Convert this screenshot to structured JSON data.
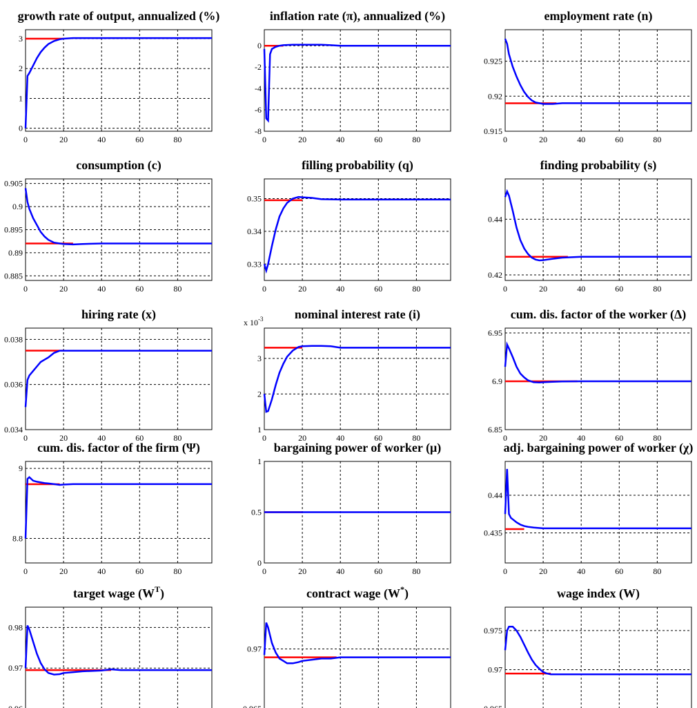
{
  "chart_data": [
    {
      "type": "line",
      "title": "growth rate of output, annualized (%)",
      "xlim": [
        0,
        98
      ],
      "ylim": [
        -0.1,
        3.3
      ],
      "xticks": [
        0,
        20,
        40,
        60,
        80
      ],
      "yticks": [
        0,
        1,
        2,
        3
      ],
      "ytick_labels": [
        "0",
        "1",
        "2",
        "3"
      ],
      "steady_state": {
        "value": 3.0,
        "x_end": 20
      },
      "series": [
        {
          "x": [
            0,
            1,
            2,
            4,
            6,
            8,
            10,
            12,
            15,
            18,
            20,
            25,
            30,
            40,
            60,
            98
          ],
          "values": [
            0,
            1.75,
            1.85,
            2.1,
            2.35,
            2.55,
            2.7,
            2.82,
            2.92,
            2.98,
            3.0,
            3.02,
            3.02,
            3.02,
            3.02,
            3.02
          ]
        }
      ]
    },
    {
      "type": "line",
      "title": "inflation rate (π), annualized (%)",
      "xlim": [
        0,
        98
      ],
      "ylim": [
        -8,
        1.5
      ],
      "xticks": [
        0,
        20,
        40,
        60,
        80
      ],
      "yticks": [
        -8,
        -6,
        -4,
        -2,
        0
      ],
      "ytick_labels": [
        "-8",
        "-6",
        "-4",
        "-2",
        "0"
      ],
      "steady_state": {
        "value": 0,
        "x_end": 10
      },
      "series": [
        {
          "x": [
            0,
            1,
            2,
            3,
            4,
            6,
            8,
            10,
            15,
            20,
            25,
            30,
            35,
            40,
            60,
            98
          ],
          "values": [
            -0.3,
            -6.8,
            -7.0,
            -0.8,
            -0.3,
            -0.1,
            0.0,
            0.05,
            0.1,
            0.1,
            0.1,
            0.1,
            0.05,
            0.0,
            0.0,
            0.0
          ]
        }
      ]
    },
    {
      "type": "line",
      "title": "employment rate (n)",
      "xlim": [
        0,
        98
      ],
      "ylim": [
        0.915,
        0.9295
      ],
      "xticks": [
        0,
        20,
        40,
        60,
        80
      ],
      "yticks": [
        0.915,
        0.92,
        0.925
      ],
      "ytick_labels": [
        "0.915",
        "0.92",
        "0.925"
      ],
      "steady_state": {
        "value": 0.919,
        "x_end": 27
      },
      "series": [
        {
          "x": [
            0,
            1,
            2,
            4,
            6,
            8,
            10,
            12,
            14,
            16,
            18,
            20,
            25,
            30,
            40,
            60,
            98
          ],
          "values": [
            0.9282,
            0.9275,
            0.926,
            0.9242,
            0.9228,
            0.9216,
            0.9206,
            0.9199,
            0.9194,
            0.9191,
            0.919,
            0.9189,
            0.9189,
            0.919,
            0.919,
            0.919,
            0.919
          ]
        }
      ]
    },
    {
      "type": "line",
      "title": "consumption (c)",
      "xlim": [
        0,
        98
      ],
      "ylim": [
        0.884,
        0.906
      ],
      "xticks": [
        0,
        20,
        40,
        60,
        80
      ],
      "yticks": [
        0.885,
        0.89,
        0.895,
        0.9,
        0.905
      ],
      "ytick_labels": [
        "0.885",
        "0.89",
        "0.895",
        "0.9",
        "0.905"
      ],
      "steady_state": {
        "value": 0.892,
        "x_end": 25
      },
      "series": [
        {
          "x": [
            0,
            1,
            2,
            4,
            6,
            8,
            10,
            12,
            15,
            18,
            20,
            25,
            30,
            40,
            60,
            98
          ],
          "values": [
            0.904,
            0.901,
            0.8995,
            0.8975,
            0.896,
            0.8945,
            0.8935,
            0.8928,
            0.8922,
            0.892,
            0.8919,
            0.8918,
            0.8919,
            0.892,
            0.892,
            0.892
          ]
        }
      ]
    },
    {
      "type": "line",
      "title": "filling probability (q)",
      "xlim": [
        0,
        98
      ],
      "ylim": [
        0.325,
        0.356
      ],
      "xticks": [
        0,
        20,
        40,
        60,
        80
      ],
      "yticks": [
        0.33,
        0.34,
        0.35
      ],
      "ytick_labels": [
        "0.33",
        "0.34",
        "0.35"
      ],
      "steady_state": {
        "value": 0.3495,
        "x_end": 20
      },
      "series": [
        {
          "x": [
            0,
            1,
            2,
            4,
            6,
            8,
            10,
            12,
            15,
            18,
            20,
            25,
            30,
            40,
            60,
            98
          ],
          "values": [
            0.33,
            0.328,
            0.33,
            0.3355,
            0.3405,
            0.3445,
            0.347,
            0.3487,
            0.35,
            0.3505,
            0.3504,
            0.3502,
            0.3498,
            0.3497,
            0.3497,
            0.3497
          ]
        }
      ]
    },
    {
      "type": "line",
      "title": "finding probability (s)",
      "xlim": [
        0,
        98
      ],
      "ylim": [
        0.418,
        0.4545
      ],
      "xticks": [
        0,
        20,
        40,
        60,
        80
      ],
      "yticks": [
        0.42,
        0.44
      ],
      "ytick_labels": [
        "0.42",
        "0.44"
      ],
      "steady_state": {
        "value": 0.4265,
        "x_end": 33
      },
      "series": [
        {
          "x": [
            0,
            1,
            2,
            4,
            6,
            8,
            10,
            12,
            14,
            16,
            18,
            20,
            25,
            30,
            40,
            60,
            98
          ],
          "values": [
            0.448,
            0.45,
            0.4485,
            0.443,
            0.437,
            0.4325,
            0.4295,
            0.4275,
            0.4262,
            0.4255,
            0.4252,
            0.4253,
            0.4258,
            0.4262,
            0.4265,
            0.4265,
            0.4265
          ]
        }
      ]
    },
    {
      "type": "line",
      "title": "hiring rate (x)",
      "xlim": [
        0,
        98
      ],
      "ylim": [
        0.034,
        0.0385
      ],
      "xticks": [
        0,
        20,
        40,
        60,
        80
      ],
      "yticks": [
        0.034,
        0.036,
        0.038
      ],
      "ytick_labels": [
        "0.034",
        "0.036",
        "0.038"
      ],
      "steady_state": {
        "value": 0.0375,
        "x_end": 20
      },
      "series": [
        {
          "x": [
            0,
            1,
            2,
            4,
            6,
            8,
            10,
            12,
            15,
            18,
            20,
            30,
            40,
            60,
            98
          ],
          "values": [
            0.035,
            0.0362,
            0.0364,
            0.0366,
            0.0368,
            0.037,
            0.0371,
            0.0372,
            0.0374,
            0.0375,
            0.0375,
            0.0375,
            0.0375,
            0.0375,
            0.0375
          ]
        }
      ]
    },
    {
      "type": "line",
      "title": "nominal interest rate (i)",
      "multiplier": "x 10",
      "multiplier_exp": "-3",
      "xlim": [
        0,
        98
      ],
      "ylim": [
        1,
        3.85
      ],
      "xticks": [
        0,
        20,
        40,
        60,
        80
      ],
      "yticks": [
        1,
        2,
        3
      ],
      "ytick_labels": [
        "1",
        "2",
        "3"
      ],
      "steady_state": {
        "value": 3.3,
        "x_end": 20
      },
      "series": [
        {
          "x": [
            0,
            1,
            2,
            4,
            6,
            8,
            10,
            12,
            15,
            18,
            20,
            25,
            30,
            35,
            40,
            60,
            98
          ],
          "values": [
            2.0,
            1.5,
            1.52,
            1.85,
            2.25,
            2.6,
            2.85,
            3.05,
            3.22,
            3.32,
            3.34,
            3.35,
            3.35,
            3.34,
            3.3,
            3.3,
            3.3
          ]
        }
      ]
    },
    {
      "type": "line",
      "title": "cum. dis. factor of the worker (Δ)",
      "xlim": [
        0,
        98
      ],
      "ylim": [
        6.85,
        6.955
      ],
      "xticks": [
        0,
        20,
        40,
        60,
        80
      ],
      "yticks": [
        6.85,
        6.9,
        6.95
      ],
      "ytick_labels": [
        "6.85",
        "6.9",
        "6.95"
      ],
      "steady_state": {
        "value": 6.9,
        "x_end": 38
      },
      "series": [
        {
          "x": [
            0,
            1,
            2,
            4,
            6,
            8,
            10,
            12,
            15,
            18,
            20,
            25,
            30,
            40,
            60,
            98
          ],
          "values": [
            6.915,
            6.938,
            6.934,
            6.925,
            6.915,
            6.908,
            6.904,
            6.901,
            6.899,
            6.8988,
            6.899,
            6.8995,
            6.8998,
            6.9,
            6.9,
            6.9
          ]
        }
      ]
    },
    {
      "type": "line",
      "title": "cum. dis. factor of the firm (Ψ)",
      "xlim": [
        0,
        98
      ],
      "ylim": [
        8.73,
        9.02
      ],
      "xticks": [
        0,
        20,
        40,
        60,
        80
      ],
      "yticks": [
        8.8,
        9
      ],
      "ytick_labels": [
        "8.8",
        "9"
      ],
      "steady_state": {
        "value": 8.955,
        "x_end": 18
      },
      "series": [
        {
          "x": [
            0,
            1,
            2,
            4,
            6,
            8,
            10,
            12,
            15,
            18,
            20,
            25,
            30,
            40,
            60,
            98
          ],
          "values": [
            8.8,
            8.97,
            8.975,
            8.965,
            8.962,
            8.96,
            8.958,
            8.957,
            8.955,
            8.953,
            8.954,
            8.955,
            8.955,
            8.955,
            8.955,
            8.955
          ]
        }
      ]
    },
    {
      "type": "line",
      "title": "bargaining power of worker (μ)",
      "xlim": [
        0,
        98
      ],
      "ylim": [
        0,
        1
      ],
      "xticks": [
        0,
        20,
        40,
        60,
        80
      ],
      "yticks": [
        0,
        0.5,
        1
      ],
      "ytick_labels": [
        "0",
        "0.5",
        "1"
      ],
      "steady_state": {
        "value": 0.5,
        "x_end": 20
      },
      "series": [
        {
          "x": [
            0,
            98
          ],
          "values": [
            0.5,
            0.5
          ]
        }
      ]
    },
    {
      "type": "line",
      "title": "adj. bargaining power of worker (χ)",
      "xlim": [
        0,
        98
      ],
      "ylim": [
        0.431,
        0.4445
      ],
      "xticks": [
        0,
        20,
        40,
        60,
        80
      ],
      "yticks": [
        0.435,
        0.44
      ],
      "ytick_labels": [
        "0.435",
        "0.44"
      ],
      "steady_state": {
        "value": 0.4355,
        "x_end": 10
      },
      "series": [
        {
          "x": [
            0,
            1,
            2,
            3,
            4,
            6,
            8,
            10,
            12,
            15,
            20,
            30,
            40,
            60,
            98
          ],
          "values": [
            0.4375,
            0.4435,
            0.4375,
            0.437,
            0.4368,
            0.4364,
            0.4361,
            0.4359,
            0.4358,
            0.4357,
            0.4356,
            0.4356,
            0.4356,
            0.4356,
            0.4356
          ]
        }
      ]
    },
    {
      "type": "line",
      "title": "target wage (W",
      "title_sup": "T",
      "title_end": ")",
      "xlim": [
        0,
        98
      ],
      "ylim": [
        0.96,
        0.985
      ],
      "xticks": [
        0,
        20,
        40,
        60,
        80
      ],
      "yticks": [
        0.96,
        0.97,
        0.98
      ],
      "ytick_labels": [
        "0.96",
        "0.97",
        "0.98"
      ],
      "steady_state": {
        "value": 0.9695,
        "x_end": 45
      },
      "series": [
        {
          "x": [
            0,
            1,
            2,
            4,
            6,
            8,
            10,
            12,
            15,
            18,
            20,
            25,
            30,
            40,
            45,
            50,
            60,
            98
          ],
          "values": [
            0.97,
            0.9805,
            0.9795,
            0.9765,
            0.9735,
            0.9712,
            0.9697,
            0.9688,
            0.9684,
            0.9685,
            0.9688,
            0.969,
            0.9692,
            0.9694,
            0.9697,
            0.9695,
            0.9695,
            0.9695
          ]
        }
      ]
    },
    {
      "type": "line",
      "title": "contract wage (W",
      "title_sup": "*",
      "title_end": ")",
      "xlim": [
        0,
        98
      ],
      "ylim": [
        0.965,
        0.9735
      ],
      "xticks": [
        0,
        20,
        40,
        60,
        80
      ],
      "yticks": [
        0.965,
        0.97
      ],
      "ytick_labels": [
        "0.965",
        "0.97"
      ],
      "steady_state": {
        "value": 0.9693,
        "x_end": 38
      },
      "series": [
        {
          "x": [
            0,
            1,
            2,
            4,
            6,
            8,
            10,
            12,
            15,
            18,
            20,
            25,
            30,
            35,
            40,
            60,
            98
          ],
          "values": [
            0.9695,
            0.9722,
            0.9718,
            0.9705,
            0.9697,
            0.9692,
            0.969,
            0.9688,
            0.9688,
            0.9689,
            0.969,
            0.9691,
            0.9692,
            0.9692,
            0.9693,
            0.9693,
            0.9693
          ]
        }
      ]
    },
    {
      "type": "line",
      "title": "wage index (W)",
      "xlim": [
        0,
        98
      ],
      "ylim": [
        0.965,
        0.978
      ],
      "xticks": [
        0,
        20,
        40,
        60,
        80
      ],
      "yticks": [
        0.965,
        0.97,
        0.975
      ],
      "ytick_labels": [
        "0.965",
        "0.97",
        "0.975"
      ],
      "steady_state": {
        "value": 0.9695,
        "x_end": 24
      },
      "series": [
        {
          "x": [
            0,
            1,
            2,
            4,
            6,
            8,
            10,
            12,
            14,
            16,
            18,
            20,
            22,
            24,
            30,
            40,
            60,
            98
          ],
          "values": [
            0.9725,
            0.975,
            0.9755,
            0.9755,
            0.975,
            0.9742,
            0.9732,
            0.9722,
            0.9713,
            0.9706,
            0.9701,
            0.9697,
            0.9695,
            0.9694,
            0.9694,
            0.9694,
            0.9694,
            0.9694
          ]
        }
      ]
    }
  ],
  "colors": {
    "steady_state": "#ff0000",
    "response": "#0000ff",
    "grid": "#000000"
  }
}
